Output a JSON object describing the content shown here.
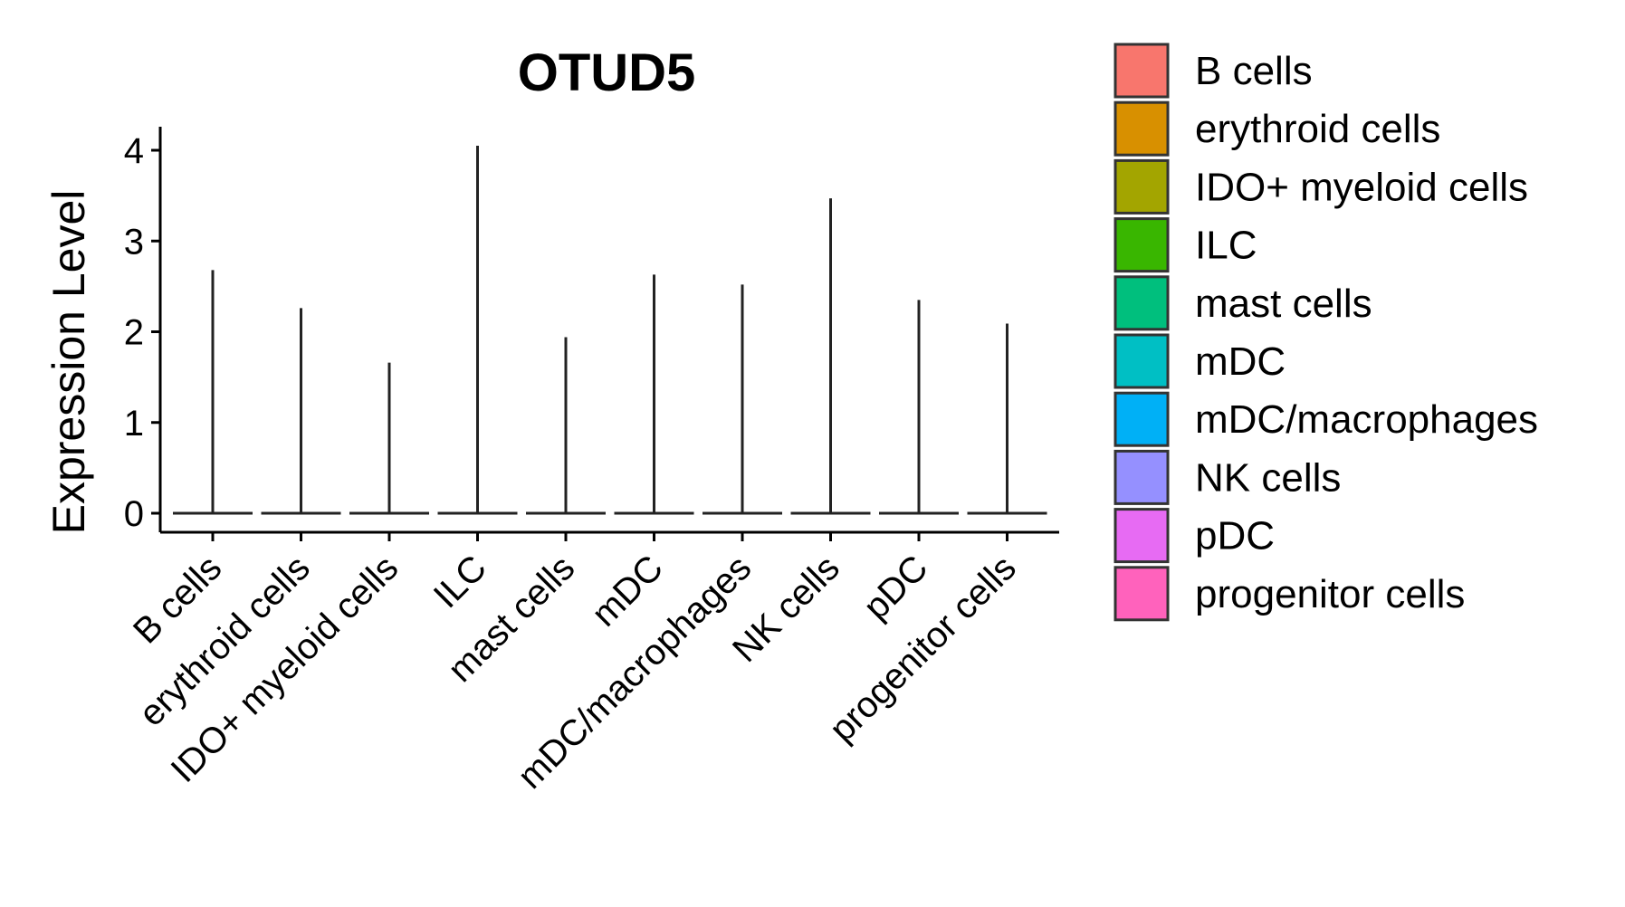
{
  "chart_data": {
    "type": "violin",
    "title": "OTUD5",
    "xlabel": "",
    "ylabel": "Expression Level",
    "ylim": [
      -0.2,
      4.3
    ],
    "yticks": [
      0,
      1,
      2,
      3,
      4
    ],
    "ytick_labels": [
      "0",
      "1",
      "2",
      "3",
      "4"
    ],
    "categories": [
      "B cells",
      "erythroid cells",
      "IDO+ myeloid cells",
      "ILC",
      "mast cells",
      "mDC",
      "mDC/macrophages",
      "NK cells",
      "pDC",
      "progenitor cells"
    ],
    "max_values": [
      2.68,
      2.26,
      1.66,
      4.05,
      1.94,
      2.63,
      2.52,
      3.47,
      2.35,
      2.09
    ],
    "median_values": [
      0,
      0,
      0,
      0,
      0,
      0,
      0,
      0,
      0,
      0
    ],
    "colors": [
      "#F8766D",
      "#D89000",
      "#A3A500",
      "#39B600",
      "#00BF7D",
      "#00BFC4",
      "#00B0F6",
      "#9590FF",
      "#E76BF3",
      "#FF62BC"
    ],
    "legend": {
      "placement": "right",
      "entries": [
        "B cells",
        "erythroid cells",
        "IDO+ myeloid cells",
        "ILC",
        "mast cells",
        "mDC",
        "mDC/macrophages",
        "NK cells",
        "pDC",
        "progenitor cells"
      ]
    }
  }
}
